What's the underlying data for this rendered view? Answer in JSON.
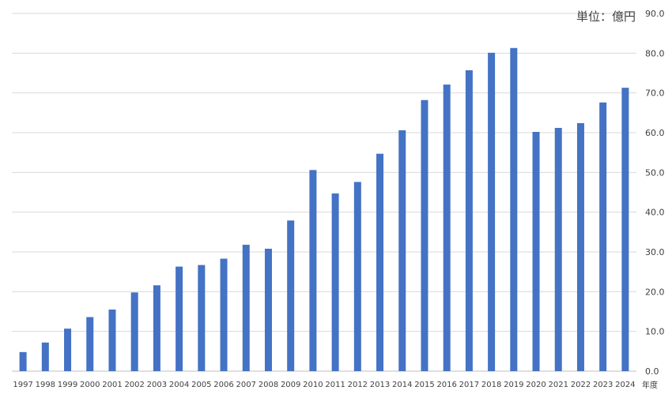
{
  "chart_data": {
    "type": "bar",
    "unit_label": "単位：億円",
    "x_unit_label": "年度",
    "categories": [
      "1997",
      "1998",
      "1999",
      "2000",
      "2001",
      "2002",
      "2003",
      "2004",
      "2005",
      "2006",
      "2007",
      "2008",
      "2009",
      "2010",
      "2011",
      "2012",
      "2013",
      "2014",
      "2015",
      "2016",
      "2017",
      "2018",
      "2019",
      "2020",
      "2021",
      "2022",
      "2023",
      "2024"
    ],
    "values": [
      4.8,
      7.2,
      10.7,
      13.6,
      15.5,
      19.8,
      21.6,
      26.3,
      26.7,
      28.3,
      31.8,
      30.8,
      37.9,
      50.6,
      44.7,
      47.6,
      54.7,
      60.6,
      68.2,
      72.1,
      75.7,
      80.1,
      81.3,
      60.2,
      61.2,
      62.4,
      67.6,
      71.3
    ],
    "ylim": [
      0,
      90
    ],
    "yticks": [
      "0.0",
      "10.0",
      "20.0",
      "30.0",
      "40.0",
      "50.0",
      "60.0",
      "70.0",
      "80.0",
      "90.0"
    ],
    "y_axis_side": "right",
    "grid": true,
    "bar_color": "#4472C4",
    "grid_color": "#D9D9D9"
  }
}
